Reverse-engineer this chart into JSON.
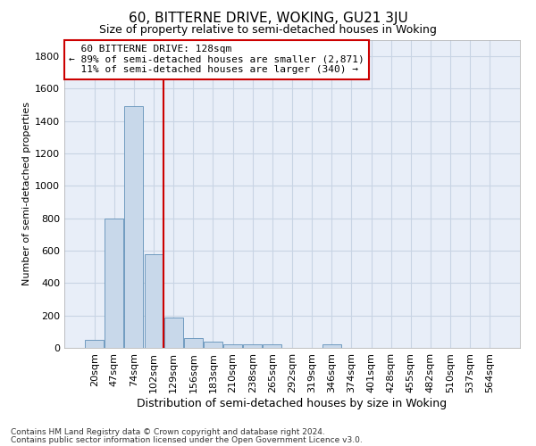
{
  "title": "60, BITTERNE DRIVE, WOKING, GU21 3JU",
  "subtitle": "Size of property relative to semi-detached houses in Woking",
  "xlabel": "Distribution of semi-detached houses by size in Woking",
  "ylabel": "Number of semi-detached properties",
  "footnote1": "Contains HM Land Registry data © Crown copyright and database right 2024.",
  "footnote2": "Contains public sector information licensed under the Open Government Licence v3.0.",
  "property_label": "60 BITTERNE DRIVE: 128sqm",
  "pct_smaller": 89,
  "n_smaller": 2871,
  "pct_larger": 11,
  "n_larger": 340,
  "bin_labels": [
    "20sqm",
    "47sqm",
    "74sqm",
    "102sqm",
    "129sqm",
    "156sqm",
    "183sqm",
    "210sqm",
    "238sqm",
    "265sqm",
    "292sqm",
    "319sqm",
    "346sqm",
    "374sqm",
    "401sqm",
    "428sqm",
    "455sqm",
    "482sqm",
    "510sqm",
    "537sqm",
    "564sqm"
  ],
  "bar_values": [
    50,
    800,
    1490,
    580,
    190,
    60,
    40,
    20,
    20,
    20,
    0,
    0,
    20,
    0,
    0,
    0,
    0,
    0,
    0,
    0,
    0
  ],
  "bar_color": "#c8d8ea",
  "bar_edge_color": "#6090b8",
  "vline_color": "#cc0000",
  "vline_x_idx": 3,
  "ylim": [
    0,
    1900
  ],
  "yticks": [
    0,
    200,
    400,
    600,
    800,
    1000,
    1200,
    1400,
    1600,
    1800
  ],
  "grid_color": "#c8d4e4",
  "bg_color": "#e8eef8",
  "title_fontsize": 11,
  "subtitle_fontsize": 9,
  "xlabel_fontsize": 9,
  "ylabel_fontsize": 8,
  "tick_fontsize": 8,
  "annot_fontsize": 8,
  "footnote_fontsize": 6.5
}
